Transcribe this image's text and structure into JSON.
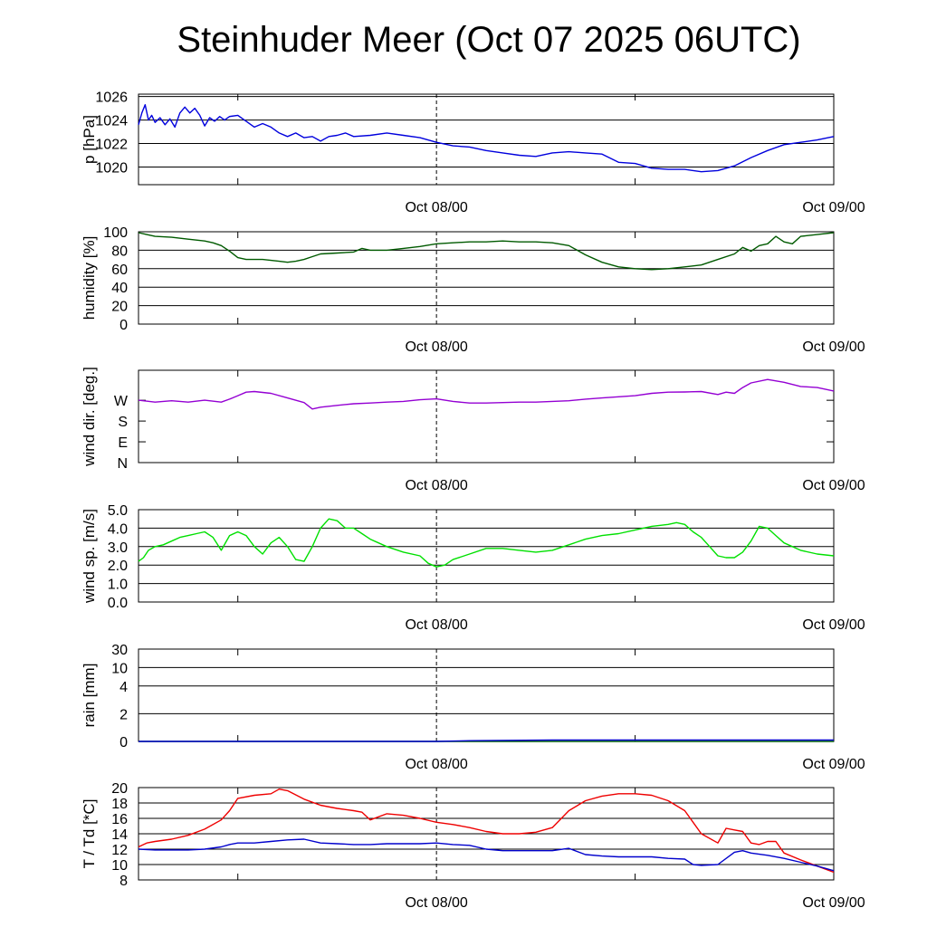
{
  "title": "Steinhuder Meer (Oct 07 2025 06UTC)",
  "colors": {
    "pressure": "#0000dd",
    "humidity": "#005a00",
    "wind_dir": "#9400d3",
    "wind_speed": "#00e000",
    "rain_green": "#006400",
    "rain_blue": "#0000cc",
    "temperature": "#ee0000",
    "dewpoint": "#0000cc"
  },
  "chart_data": [
    {
      "type": "line",
      "ylabel": "p [hPa]",
      "ylim": [
        1018.5,
        1026.2
      ],
      "yticks": [
        1020,
        1022,
        1024,
        1026
      ],
      "ytick_labels": [
        "1020",
        "1022",
        "1024",
        "1026"
      ],
      "xlim": [
        0,
        42
      ],
      "xtick_labels": [
        {
          "x": 18,
          "label": "Oct 08/00"
        },
        {
          "x": 42,
          "label": "Oct 09/00"
        }
      ],
      "series": [
        {
          "color_key": "pressure",
          "x": [
            0,
            0.2,
            0.4,
            0.6,
            0.8,
            1.0,
            1.3,
            1.6,
            1.9,
            2.2,
            2.5,
            2.8,
            3.1,
            3.4,
            3.7,
            4.0,
            4.3,
            4.6,
            4.9,
            5.2,
            5.5,
            6,
            6.5,
            7,
            7.5,
            8,
            8.5,
            9,
            9.5,
            10,
            10.5,
            11,
            11.5,
            12,
            12.5,
            13,
            14,
            15,
            16,
            17,
            18,
            19,
            20,
            21,
            22,
            23,
            24,
            25,
            26,
            27,
            28,
            29,
            30,
            31,
            32,
            33,
            34,
            35,
            36,
            37,
            38,
            39,
            40,
            41,
            42
          ],
          "y": [
            1023.6,
            1024.6,
            1025.3,
            1024.0,
            1024.4,
            1023.8,
            1024.2,
            1023.6,
            1024.1,
            1023.4,
            1024.6,
            1025.1,
            1024.6,
            1025.0,
            1024.4,
            1023.5,
            1024.2,
            1023.9,
            1024.3,
            1024.0,
            1024.3,
            1024.4,
            1023.9,
            1023.4,
            1023.7,
            1023.4,
            1022.9,
            1022.6,
            1022.9,
            1022.5,
            1022.6,
            1022.2,
            1022.6,
            1022.7,
            1022.9,
            1022.6,
            1022.7,
            1022.9,
            1022.7,
            1022.5,
            1022.1,
            1021.8,
            1021.7,
            1021.4,
            1021.2,
            1021.0,
            1020.9,
            1021.2,
            1021.3,
            1021.2,
            1021.1,
            1020.4,
            1020.3,
            1019.9,
            1019.8,
            1019.8,
            1019.6,
            1019.7,
            1020.1,
            1020.8,
            1021.4,
            1021.9,
            1022.1,
            1022.3,
            1022.6
          ]
        }
      ]
    },
    {
      "type": "line",
      "ylabel": "humidity [%]",
      "ylim": [
        0,
        100
      ],
      "yticks": [
        0,
        20,
        40,
        60,
        80,
        100
      ],
      "ytick_labels": [
        "0",
        "20",
        "40",
        "60",
        "80",
        "100"
      ],
      "xlim": [
        0,
        42
      ],
      "xtick_labels": [
        {
          "x": 18,
          "label": "Oct 08/00"
        },
        {
          "x": 42,
          "label": "Oct 09/00"
        }
      ],
      "series": [
        {
          "color_key": "humidity",
          "x": [
            0,
            0.5,
            1,
            2,
            3,
            4,
            4.5,
            5,
            5.5,
            6,
            6.5,
            7,
            7.5,
            8,
            8.5,
            9,
            9.5,
            10,
            10.5,
            11,
            12,
            13,
            13.5,
            14,
            15,
            16,
            17,
            18,
            19,
            20,
            21,
            22,
            23,
            24,
            25,
            26,
            27,
            28,
            29,
            30,
            31,
            32,
            33,
            34,
            35,
            36,
            36.5,
            37,
            37.5,
            38,
            38.5,
            39,
            39.5,
            40,
            41,
            42
          ],
          "y": [
            99,
            97,
            95,
            94,
            92,
            90,
            88,
            85,
            79,
            72,
            70,
            70,
            70,
            69,
            68,
            67,
            68,
            70,
            73,
            76,
            77,
            78,
            82,
            80,
            80,
            82,
            84,
            87,
            88,
            89,
            89,
            90,
            89,
            89,
            88,
            85,
            75,
            67,
            62,
            60,
            59,
            60,
            62,
            64,
            70,
            76,
            83,
            79,
            85,
            87,
            95,
            89,
            87,
            95,
            97,
            99
          ]
        }
      ]
    },
    {
      "type": "line",
      "ylabel": "wind dir. [deg.]",
      "ylim": [
        0,
        400
      ],
      "yticks": [
        0,
        90,
        180,
        270
      ],
      "ytick_labels": [
        "N",
        "E",
        "S",
        "W"
      ],
      "xlim": [
        0,
        42
      ],
      "xtick_labels": [
        {
          "x": 18,
          "label": "Oct 08/00"
        },
        {
          "x": 42,
          "label": "Oct 09/00"
        }
      ],
      "series": [
        {
          "color_key": "wind_dir",
          "x": [
            0,
            1,
            2,
            3,
            4,
            5,
            5.5,
            6,
            6.5,
            7,
            8,
            9,
            10,
            10.5,
            11,
            12,
            13,
            14,
            15,
            16,
            17,
            18,
            19,
            20,
            21,
            22,
            23,
            24,
            25,
            26,
            27,
            28,
            29,
            30,
            31,
            32,
            33,
            34,
            35,
            35.5,
            36,
            36.5,
            37,
            38,
            39,
            40,
            41,
            42
          ],
          "y": [
            270,
            262,
            268,
            262,
            270,
            262,
            275,
            290,
            305,
            308,
            300,
            280,
            260,
            232,
            240,
            248,
            255,
            258,
            262,
            265,
            272,
            276,
            265,
            258,
            258,
            260,
            262,
            262,
            265,
            268,
            275,
            280,
            285,
            290,
            300,
            305,
            306,
            308,
            295,
            305,
            300,
            325,
            345,
            360,
            348,
            330,
            325,
            310
          ]
        }
      ]
    },
    {
      "type": "line",
      "ylabel": "wind sp. [m/s]",
      "ylim": [
        0,
        5
      ],
      "yticks": [
        0,
        1,
        2,
        3,
        4,
        5
      ],
      "ytick_labels": [
        "0.0",
        "1.0",
        "2.0",
        "3.0",
        "4.0",
        "5.0"
      ],
      "xlim": [
        0,
        42
      ],
      "xtick_labels": [
        {
          "x": 18,
          "label": "Oct 08/00"
        },
        {
          "x": 42,
          "label": "Oct 09/00"
        }
      ],
      "series": [
        {
          "color_key": "wind_speed",
          "x": [
            0,
            0.3,
            0.6,
            1,
            1.5,
            2,
            2.5,
            3,
            3.5,
            4,
            4.5,
            5,
            5.5,
            6,
            6.5,
            7,
            7.5,
            8,
            8.5,
            9,
            9.5,
            10,
            10.5,
            11,
            11.5,
            12,
            12.5,
            13,
            13.5,
            14,
            14.5,
            15,
            16,
            17,
            17.5,
            18,
            18.5,
            19,
            20,
            21,
            22,
            23,
            24,
            25,
            26,
            27,
            28,
            29,
            30,
            31,
            32,
            32.5,
            33,
            33.5,
            34,
            34.5,
            35,
            35.5,
            36,
            36.5,
            37,
            37.5,
            38,
            38.5,
            39,
            40,
            41,
            42
          ],
          "y": [
            2.2,
            2.4,
            2.8,
            3.0,
            3.1,
            3.3,
            3.5,
            3.6,
            3.7,
            3.8,
            3.5,
            2.8,
            3.6,
            3.8,
            3.6,
            3.0,
            2.6,
            3.2,
            3.5,
            3.0,
            2.3,
            2.2,
            3.0,
            4.0,
            4.5,
            4.4,
            4.0,
            4.0,
            3.7,
            3.4,
            3.2,
            3.0,
            2.7,
            2.5,
            2.1,
            1.9,
            2.0,
            2.3,
            2.6,
            2.9,
            2.9,
            2.8,
            2.7,
            2.8,
            3.1,
            3.4,
            3.6,
            3.7,
            3.9,
            4.1,
            4.2,
            4.3,
            4.2,
            3.8,
            3.5,
            3.0,
            2.5,
            2.4,
            2.4,
            2.7,
            3.3,
            4.1,
            4.0,
            3.6,
            3.2,
            2.8,
            2.6,
            2.5
          ]
        }
      ]
    },
    {
      "type": "line",
      "ylabel": "rain [mm]",
      "ylim": [
        0,
        30
      ],
      "yticks": [
        0,
        2,
        4,
        10,
        30
      ],
      "ytick_labels": [
        "0",
        "2",
        "4",
        "10",
        "30"
      ],
      "xlim": [
        0,
        42
      ],
      "xtick_labels": [
        {
          "x": 18,
          "label": "Oct 08/00"
        },
        {
          "x": 42,
          "label": "Oct 09/00"
        }
      ],
      "series": [
        {
          "color_key": "rain_green",
          "x": [
            0,
            42
          ],
          "y": [
            0,
            0
          ]
        },
        {
          "color_key": "rain_blue",
          "x": [
            0,
            18,
            20,
            25,
            42
          ],
          "y": [
            0,
            0,
            0.05,
            0.1,
            0.1
          ]
        }
      ]
    },
    {
      "type": "line",
      "ylabel": "T / Td [*C]",
      "ylim": [
        8,
        20
      ],
      "yticks": [
        8,
        10,
        12,
        14,
        16,
        18,
        20
      ],
      "ytick_labels": [
        "8",
        "10",
        "12",
        "14",
        "16",
        "18",
        "20"
      ],
      "xlim": [
        0,
        42
      ],
      "xtick_labels": [
        {
          "x": 18,
          "label": "Oct 08/00"
        },
        {
          "x": 42,
          "label": "Oct 09/00"
        }
      ],
      "series": [
        {
          "name": "T",
          "color_key": "temperature",
          "x": [
            0,
            0.5,
            1,
            2,
            3,
            4,
            5,
            5.5,
            6,
            7,
            8,
            8.5,
            9,
            10,
            11,
            12,
            13,
            13.5,
            14,
            15,
            16,
            17,
            18,
            19,
            20,
            21,
            22,
            23,
            24,
            25,
            26,
            27,
            28,
            29,
            30,
            31,
            32,
            33,
            33.5,
            34,
            35,
            35.5,
            36,
            36.5,
            37,
            37.5,
            38,
            38.5,
            39,
            40,
            41,
            42
          ],
          "y": [
            12.3,
            12.8,
            13.0,
            13.3,
            13.8,
            14.6,
            15.8,
            17.0,
            18.6,
            19.0,
            19.2,
            19.8,
            19.6,
            18.5,
            17.7,
            17.3,
            17.0,
            16.8,
            15.8,
            16.6,
            16.4,
            16.0,
            15.5,
            15.2,
            14.8,
            14.3,
            14.0,
            14.0,
            14.2,
            14.8,
            17.0,
            18.3,
            18.9,
            19.2,
            19.2,
            19.0,
            18.3,
            17.0,
            15.5,
            14.0,
            12.8,
            14.7,
            14.5,
            14.3,
            12.8,
            12.6,
            13.0,
            13.0,
            11.5,
            10.6,
            9.8,
            9.0
          ]
        },
        {
          "name": "Td",
          "color_key": "dewpoint",
          "x": [
            0,
            1,
            2,
            3,
            4,
            5,
            5.5,
            6,
            7,
            8,
            9,
            10,
            11,
            12,
            13,
            14,
            15,
            16,
            17,
            18,
            19,
            20,
            21,
            22,
            23,
            24,
            25,
            26,
            27,
            28,
            29,
            30,
            31,
            32,
            33,
            33.5,
            34,
            35,
            36,
            36.5,
            37,
            38,
            39,
            40,
            41,
            42
          ],
          "y": [
            12.0,
            11.9,
            11.9,
            11.9,
            12.0,
            12.3,
            12.6,
            12.8,
            12.8,
            13.0,
            13.2,
            13.3,
            12.8,
            12.7,
            12.6,
            12.6,
            12.7,
            12.7,
            12.7,
            12.8,
            12.6,
            12.5,
            12.0,
            11.8,
            11.8,
            11.8,
            11.8,
            12.1,
            11.3,
            11.1,
            11.0,
            11.0,
            11.0,
            10.8,
            10.7,
            10.0,
            9.9,
            10.0,
            11.6,
            11.8,
            11.5,
            11.2,
            10.8,
            10.3,
            9.8,
            9.2
          ]
        }
      ]
    }
  ]
}
